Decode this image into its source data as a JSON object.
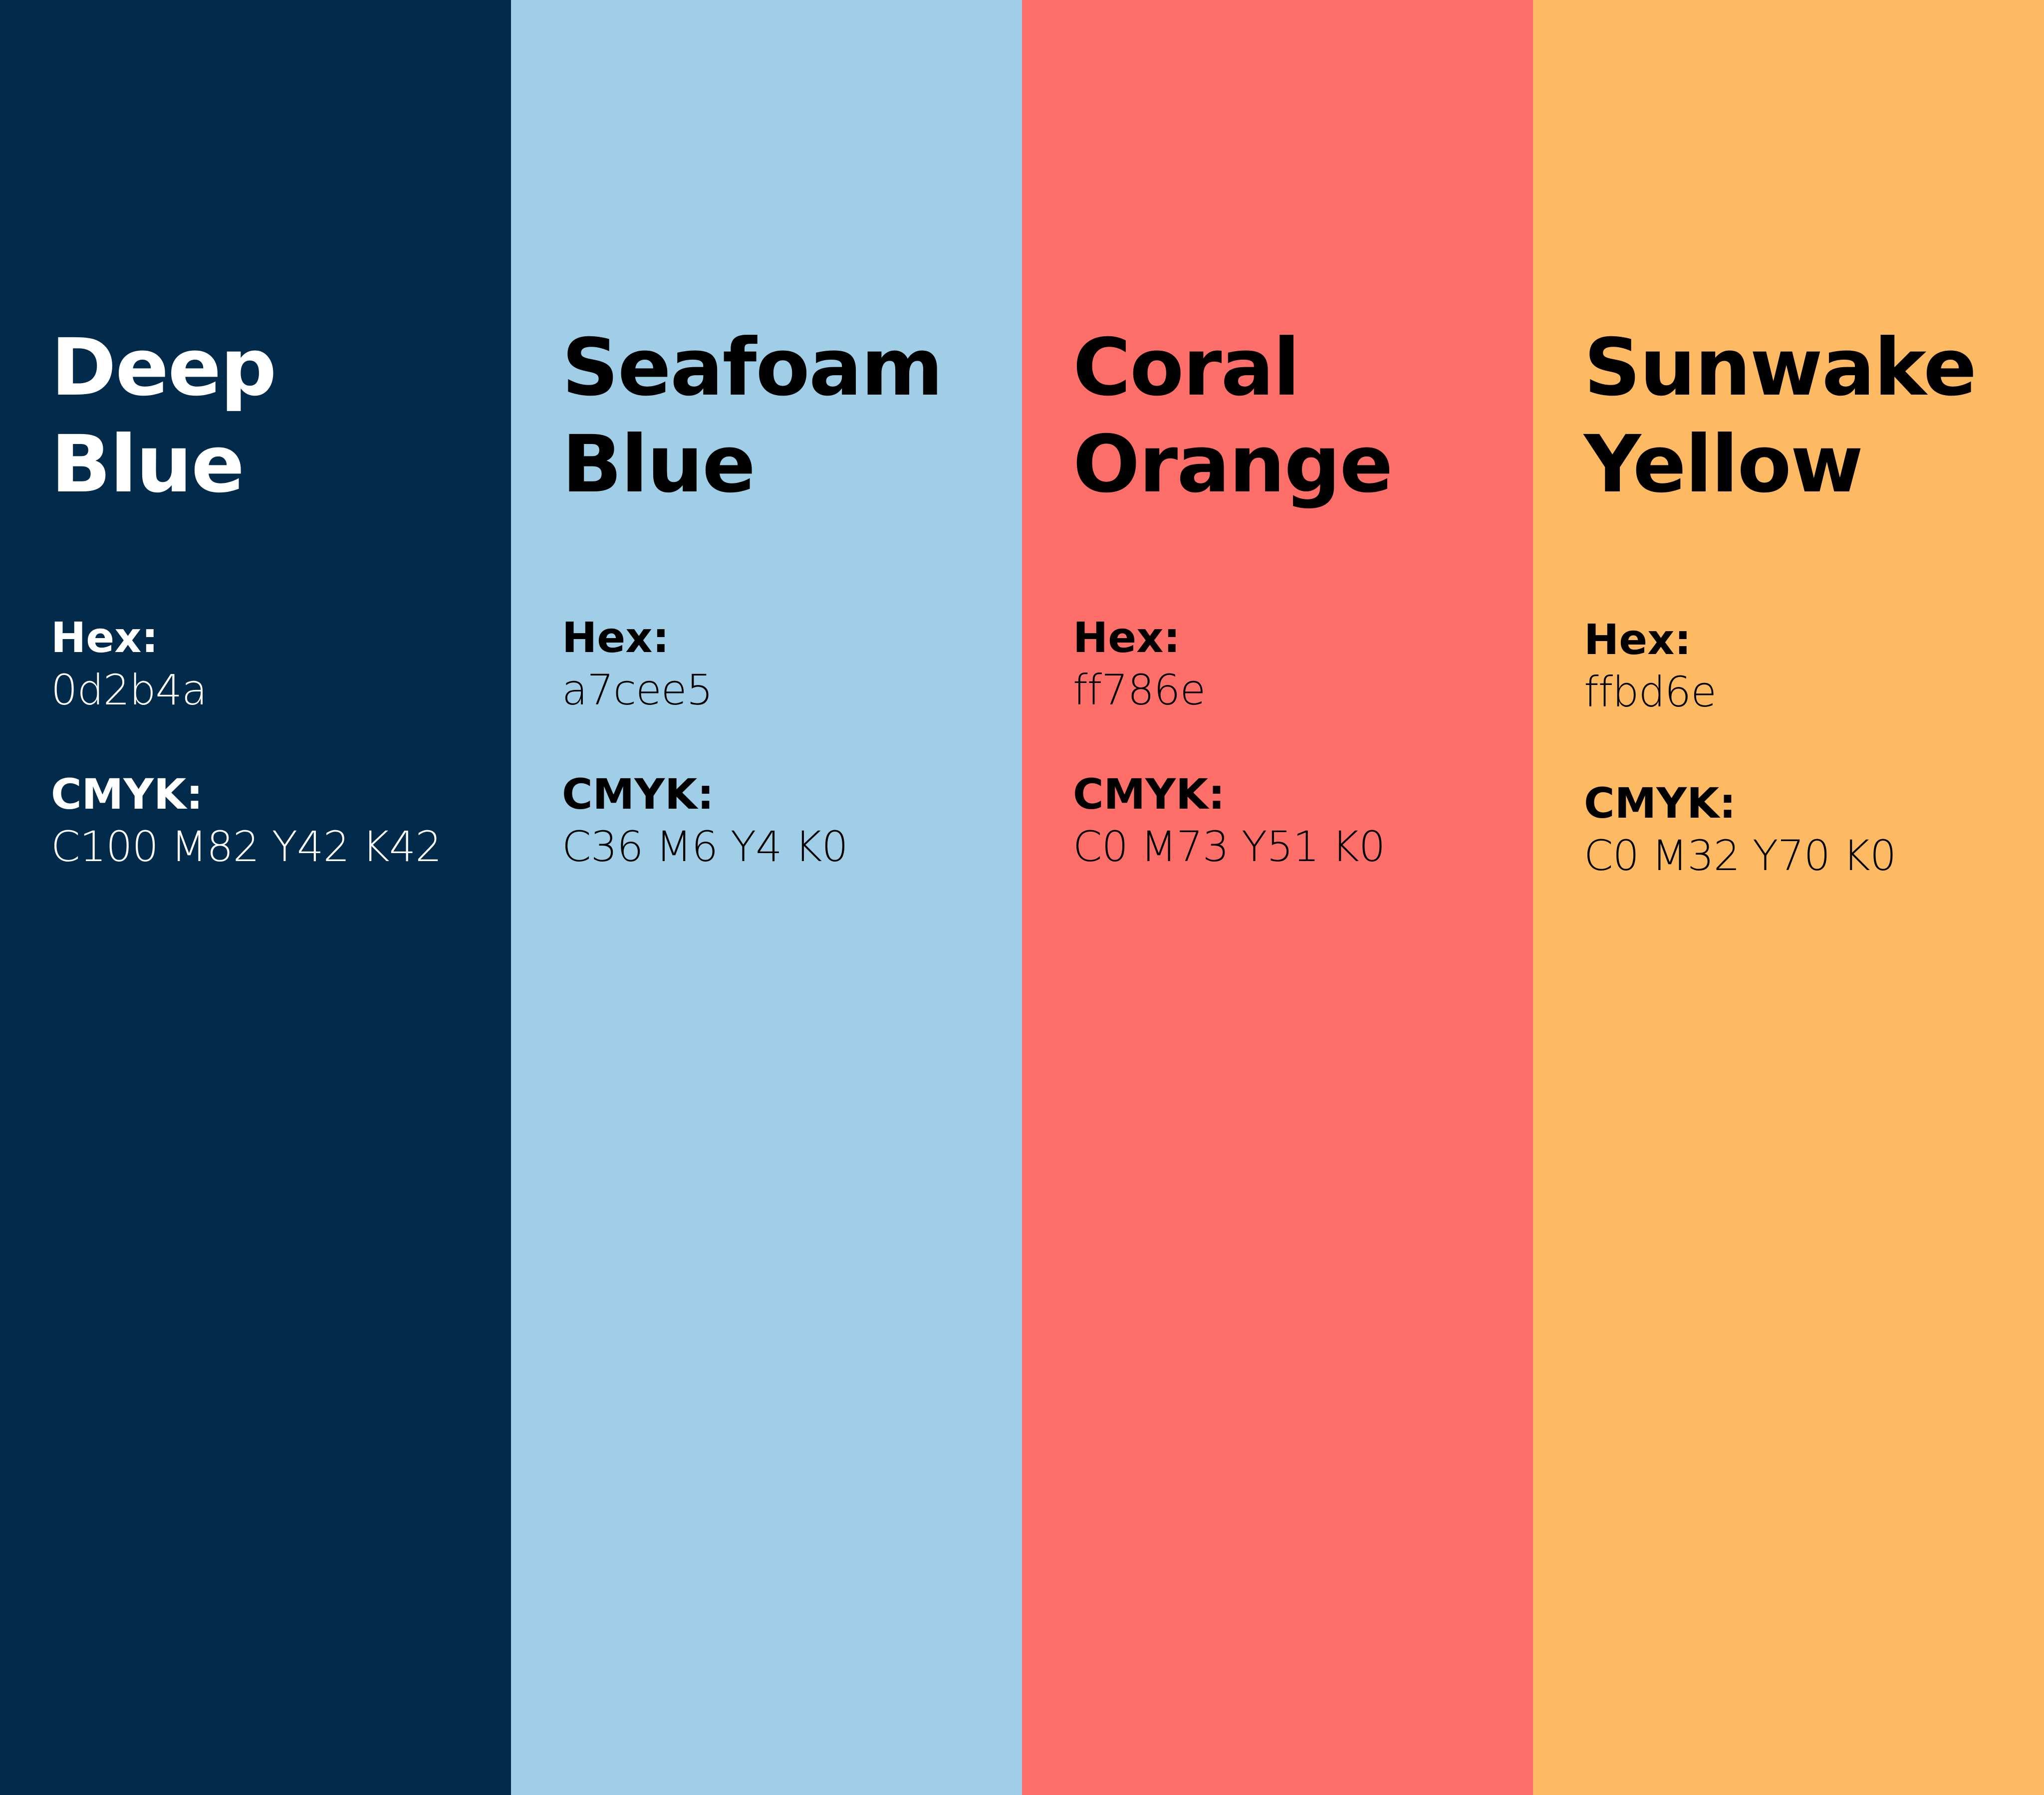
{
  "swatches": [
    {
      "title_line1": "Deep",
      "title_line2": "Blue",
      "hex_label": "Hex:",
      "hex": "0d2b4a",
      "cmyk_label": "CMYK:",
      "cmyk": "C100 M82 Y42 K42",
      "background": "#022b4b",
      "text_color": "#ffffff"
    },
    {
      "title_line1": "Seafoam",
      "title_line2": "Blue",
      "hex_label": "Hex:",
      "hex": "a7cee5",
      "cmyk_label": "CMYK:",
      "cmyk": "C36 M6 Y4 K0",
      "background": "#a0cee6",
      "text_color": "#000000"
    },
    {
      "title_line1": "Coral",
      "title_line2": "Orange",
      "hex_label": "Hex:",
      "hex": "ff786e",
      "cmyk_label": "CMYK:",
      "cmyk": "C0 M73 Y51 K0",
      "background": "#ff6f69",
      "text_color": "#000000"
    },
    {
      "title_line1": "Sunwake",
      "title_line2": "Yellow",
      "hex_label": "Hex:",
      "hex": "ffbd6e",
      "cmyk_label": "CMYK:",
      "cmyk": "C0 M32 Y70 K0",
      "background": "#feba62",
      "text_color": "#000000"
    }
  ]
}
